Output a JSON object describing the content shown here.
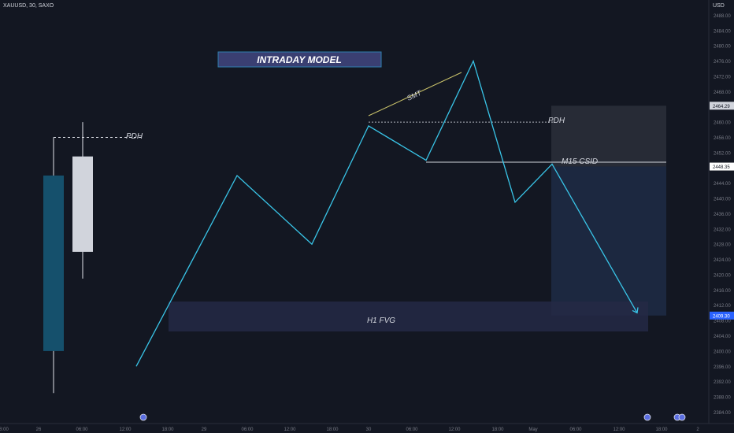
{
  "header": {
    "symbol": "XAUUSD, 30, SAXO",
    "currency": "USD"
  },
  "colors": {
    "background": "#131722",
    "line": "#39c5e8",
    "candle_bear": "#15506c",
    "candle_bull": "#d1d4dc",
    "title_box": "#3a3f72",
    "title_border": "#2f7fb0",
    "fvg_box": "#252945",
    "range_box": "#2a2e39",
    "smt_line": "#c9c26a",
    "axis_text": "#787b86",
    "price_tag": "#2962ff"
  },
  "annotations": {
    "title": "INTRADAY MODEL",
    "pdh_left": "PDH",
    "pdh_right": "PDH",
    "smt": "SMT",
    "m15_csid": "M15 CSID",
    "h1_fvg": "H1 FVG"
  },
  "price_tags": {
    "upper": "2464.29",
    "middle": "2448.35",
    "lower": "2409.30"
  },
  "chart_data": {
    "type": "line",
    "yaxis": {
      "ylim": [
        2381,
        2492
      ],
      "ticks": [
        "2488.00",
        "2484.00",
        "2480.00",
        "2476.00",
        "2472.00",
        "2468.00",
        "2464.00",
        "2460.00",
        "2456.00",
        "2452.00",
        "2448.00",
        "2444.00",
        "2440.00",
        "2436.00",
        "2432.00",
        "2428.00",
        "2424.00",
        "2420.00",
        "2416.00",
        "2412.00",
        "2408.00",
        "2404.00",
        "2400.00",
        "2396.00",
        "2392.00",
        "2388.00",
        "2384.00"
      ]
    },
    "xaxis": {
      "ticks": [
        "8:00",
        "26",
        "06:00",
        "12:00",
        "18:00",
        "29",
        "06:00",
        "12:00",
        "18:00",
        "30",
        "06:00",
        "12:00",
        "18:00",
        "May",
        "06:00",
        "12:00",
        "18:00",
        "2"
      ]
    },
    "candles": [
      {
        "open": 2446,
        "close": 2400,
        "high": 2456,
        "low": 2389
      },
      {
        "open": 2426,
        "close": 2451,
        "high": 2460,
        "low": 2419
      }
    ],
    "series": [
      {
        "values": [
          2396,
          2446,
          2428,
          2459,
          2450,
          2476,
          2439,
          2449,
          2410
        ]
      }
    ]
  }
}
